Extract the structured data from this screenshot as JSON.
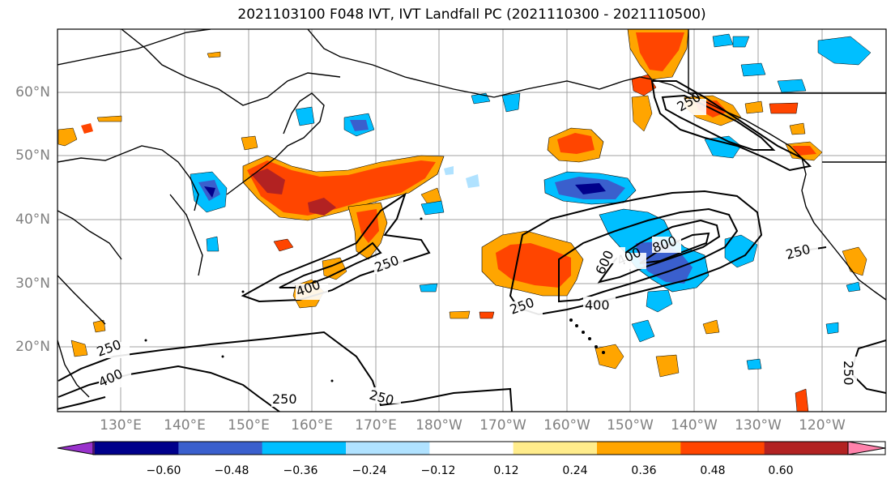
{
  "title": "2021103100 F048 IVT, IVT Landfall PC (2021110300 - 2021110500)",
  "latitude_labels": [
    "60°N",
    "50°N",
    "40°N",
    "30°N",
    "20°N"
  ],
  "longitude_labels": [
    "130°E",
    "140°E",
    "150°E",
    "160°E",
    "170°E",
    "180°W",
    "170°W",
    "160°W",
    "150°W",
    "140°W",
    "130°W",
    "120°W"
  ],
  "contour_labels": [
    "250",
    "400",
    "600",
    "800",
    "250",
    "400",
    "250",
    "400",
    "250",
    "250",
    "250",
    "400",
    "250",
    "250"
  ],
  "colorbar": {
    "ticks": [
      "−0.60",
      "−0.48",
      "−0.36",
      "−0.24",
      "−0.12",
      "0.12",
      "0.24",
      "0.36",
      "0.48",
      "0.60"
    ],
    "colors": [
      "#9932cc",
      "#00008b",
      "#3a5fcd",
      "#00bfff",
      "#b0e2ff",
      "#ffffff",
      "#ffec8b",
      "#ffa500",
      "#ff4500",
      "#b22222",
      "#ff82ab"
    ]
  }
}
